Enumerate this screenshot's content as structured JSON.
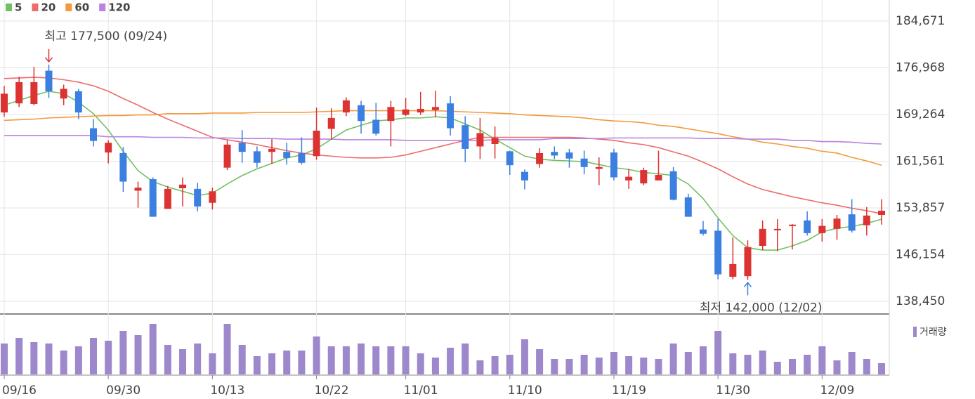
{
  "chart_data": {
    "type": "candlestick",
    "categories": [
      "09/16",
      null,
      null,
      null,
      null,
      null,
      null,
      "09/30",
      null,
      null,
      null,
      null,
      null,
      null,
      "10/13",
      null,
      null,
      null,
      null,
      null,
      null,
      "10/22",
      null,
      null,
      null,
      null,
      null,
      "11/01",
      null,
      null,
      null,
      null,
      null,
      null,
      "11/10",
      null,
      null,
      null,
      null,
      null,
      null,
      "11/19",
      null,
      null,
      null,
      null,
      null,
      null,
      "11/30",
      null,
      null,
      null,
      null,
      null,
      null,
      "12/09",
      null,
      null,
      null,
      null
    ],
    "candles": {
      "open": [
        169600,
        171100,
        171000,
        176500,
        171900,
        173100,
        167000,
        163000,
        162900,
        156700,
        158600,
        153700,
        157100,
        157000,
        154700,
        160500,
        164600,
        163200,
        163100,
        163100,
        162900,
        162400,
        166900,
        169600,
        170800,
        168400,
        168200,
        169200,
        169600,
        170000,
        171100,
        167500,
        164000,
        164400,
        163200,
        159800,
        161100,
        163100,
        163000,
        162000,
        160300,
        163000,
        158400,
        157900,
        158400,
        159900,
        155600,
        150300,
        150100,
        142500,
        142600,
        147600,
        150200,
        150900,
        151800,
        149700,
        150400,
        152800,
        151000,
        152700
      ],
      "high": [
        174000,
        175500,
        177100,
        177500,
        174200,
        173500,
        168500,
        165000,
        163900,
        158200,
        158900,
        157500,
        158900,
        158000,
        157200,
        165000,
        166700,
        164000,
        165200,
        164600,
        165500,
        170400,
        170300,
        172100,
        171500,
        171200,
        171500,
        172000,
        173000,
        173200,
        172300,
        169000,
        168700,
        167300,
        163300,
        160200,
        163700,
        164000,
        163600,
        163300,
        162200,
        163600,
        160300,
        160500,
        163300,
        160600,
        156200,
        151700,
        152000,
        149000,
        148500,
        151800,
        152000,
        151200,
        153300,
        152000,
        152700,
        155300,
        154000,
        155300
      ],
      "low": [
        168900,
        170500,
        170800,
        172000,
        170800,
        168500,
        164000,
        161200,
        156500,
        153900,
        152400,
        153700,
        154100,
        153300,
        153600,
        160100,
        161300,
        160500,
        161100,
        161000,
        161000,
        161800,
        165100,
        169000,
        166100,
        165800,
        164000,
        169000,
        169200,
        168800,
        165800,
        161400,
        161900,
        162000,
        159300,
        156900,
        160500,
        161900,
        160500,
        159400,
        157600,
        158400,
        157000,
        157600,
        158400,
        155100,
        152400,
        149300,
        142100,
        142100,
        142000,
        146900,
        146700,
        147000,
        149300,
        148300,
        148600,
        149800,
        149300,
        151100
      ],
      "close": [
        172700,
        174600,
        174600,
        173100,
        173500,
        169600,
        164900,
        164600,
        158200,
        157200,
        152400,
        157000,
        157700,
        154100,
        156600,
        164300,
        163100,
        161300,
        163600,
        162100,
        161300,
        166600,
        168700,
        171600,
        168200,
        166100,
        170500,
        170100,
        170200,
        170500,
        167000,
        163600,
        166200,
        165400,
        160900,
        158400,
        162900,
        162500,
        162000,
        160600,
        160600,
        158900,
        159000,
        160100,
        159300,
        155200,
        152400,
        149600,
        142900,
        144600,
        147400,
        150400,
        150400,
        151100,
        149700,
        150900,
        152100,
        150100,
        152600,
        153400
      ]
    },
    "up_color": "#dc3232",
    "down_color": "#3b7fe0",
    "series": [
      {
        "name": "5",
        "color": "#72c063",
        "values": [
          170800,
          171600,
          172400,
          173100,
          172700,
          171300,
          169400,
          166700,
          163200,
          160000,
          158200,
          157300,
          156600,
          155900,
          156300,
          157800,
          159200,
          160300,
          161200,
          162100,
          162600,
          163600,
          165200,
          166700,
          167500,
          168200,
          168400,
          168700,
          168700,
          168900,
          168700,
          167700,
          166700,
          165200,
          163800,
          162400,
          161900,
          161700,
          161600,
          161500,
          161000,
          160500,
          160200,
          159700,
          159500,
          159200,
          157800,
          155400,
          152200,
          149300,
          147300,
          146900,
          146900,
          147600,
          148500,
          149900,
          150500,
          150800,
          151300,
          152000
        ]
      },
      {
        "name": "20",
        "color": "#ec6c6c",
        "values": [
          175200,
          175300,
          175400,
          175300,
          175000,
          174600,
          174000,
          173100,
          171900,
          170800,
          169600,
          168500,
          167500,
          166500,
          165500,
          165100,
          164700,
          164300,
          163800,
          163300,
          162900,
          162600,
          162400,
          162200,
          162100,
          162100,
          162200,
          162600,
          163200,
          163800,
          164400,
          165000,
          165500,
          165500,
          165500,
          165500,
          165500,
          165500,
          165500,
          165400,
          165200,
          165000,
          164600,
          164300,
          163800,
          163100,
          162400,
          161400,
          160300,
          159000,
          157800,
          156900,
          156300,
          155700,
          155200,
          154700,
          154300,
          153800,
          153400,
          152900
        ]
      },
      {
        "name": "60",
        "color": "#f39a3e",
        "values": [
          168300,
          168400,
          168500,
          168700,
          168800,
          168900,
          169000,
          169100,
          169100,
          169200,
          169200,
          169400,
          169400,
          169400,
          169500,
          169500,
          169500,
          169600,
          169600,
          169600,
          169600,
          169700,
          169800,
          169900,
          169900,
          169900,
          169900,
          169900,
          169900,
          169900,
          169800,
          169700,
          169600,
          169500,
          169400,
          169200,
          169100,
          169000,
          168900,
          168700,
          168400,
          168200,
          168100,
          167900,
          167500,
          167300,
          166900,
          166500,
          166100,
          165600,
          165200,
          164700,
          164400,
          164000,
          163700,
          163200,
          162900,
          162200,
          161600,
          160900
        ]
      },
      {
        "name": "120",
        "color": "#b982e0",
        "values": [
          165800,
          165800,
          165800,
          165800,
          165800,
          165800,
          165800,
          165600,
          165600,
          165600,
          165500,
          165500,
          165500,
          165400,
          165400,
          165400,
          165300,
          165300,
          165300,
          165200,
          165200,
          165200,
          165200,
          165100,
          165100,
          165100,
          165100,
          165000,
          165000,
          165000,
          165000,
          165000,
          165000,
          165100,
          165100,
          165100,
          165100,
          165300,
          165300,
          165300,
          165300,
          165400,
          165400,
          165400,
          165400,
          165400,
          165400,
          165300,
          165300,
          165300,
          165200,
          165200,
          165200,
          165000,
          165000,
          164800,
          164800,
          164700,
          164500,
          164400
        ]
      }
    ],
    "volume": {
      "name": "거래량",
      "color": "#9d88cc",
      "ylim": [
        0,
        2075000
      ],
      "values": [
        1100000,
        1300000,
        1150000,
        1100000,
        850000,
        1000000,
        1300000,
        1200000,
        1550000,
        1400000,
        1800000,
        1050000,
        900000,
        1100000,
        750000,
        1800000,
        1050000,
        650000,
        750000,
        850000,
        850000,
        1350000,
        1000000,
        1000000,
        1100000,
        1000000,
        1000000,
        1000000,
        750000,
        600000,
        950000,
        1100000,
        500000,
        650000,
        700000,
        1250000,
        900000,
        550000,
        550000,
        700000,
        600000,
        800000,
        650000,
        600000,
        550000,
        1100000,
        800000,
        1000000,
        1550000,
        750000,
        700000,
        850000,
        450000,
        550000,
        700000,
        1000000,
        500000,
        800000,
        550000,
        400000
      ]
    },
    "annotations": [
      {
        "label": "최고 177,500 (09/24)",
        "value": 177500,
        "color": "#dc3232"
      },
      {
        "label": "최저 142,000 (12/02)",
        "value": 142000,
        "color": "#3b7fe0"
      }
    ],
    "ylim": [
      136362,
      188151
    ],
    "yticks": [
      {
        "value": 184671,
        "label": "184,671"
      },
      {
        "value": 176968,
        "label": "176,968"
      },
      {
        "value": 169264,
        "label": "169,264"
      },
      {
        "value": 161561,
        "label": "161,561"
      },
      {
        "value": 153857,
        "label": "153,857"
      },
      {
        "value": 146154,
        "label": "146,154"
      },
      {
        "value": 138450,
        "label": "138,450"
      }
    ],
    "grid": true
  }
}
